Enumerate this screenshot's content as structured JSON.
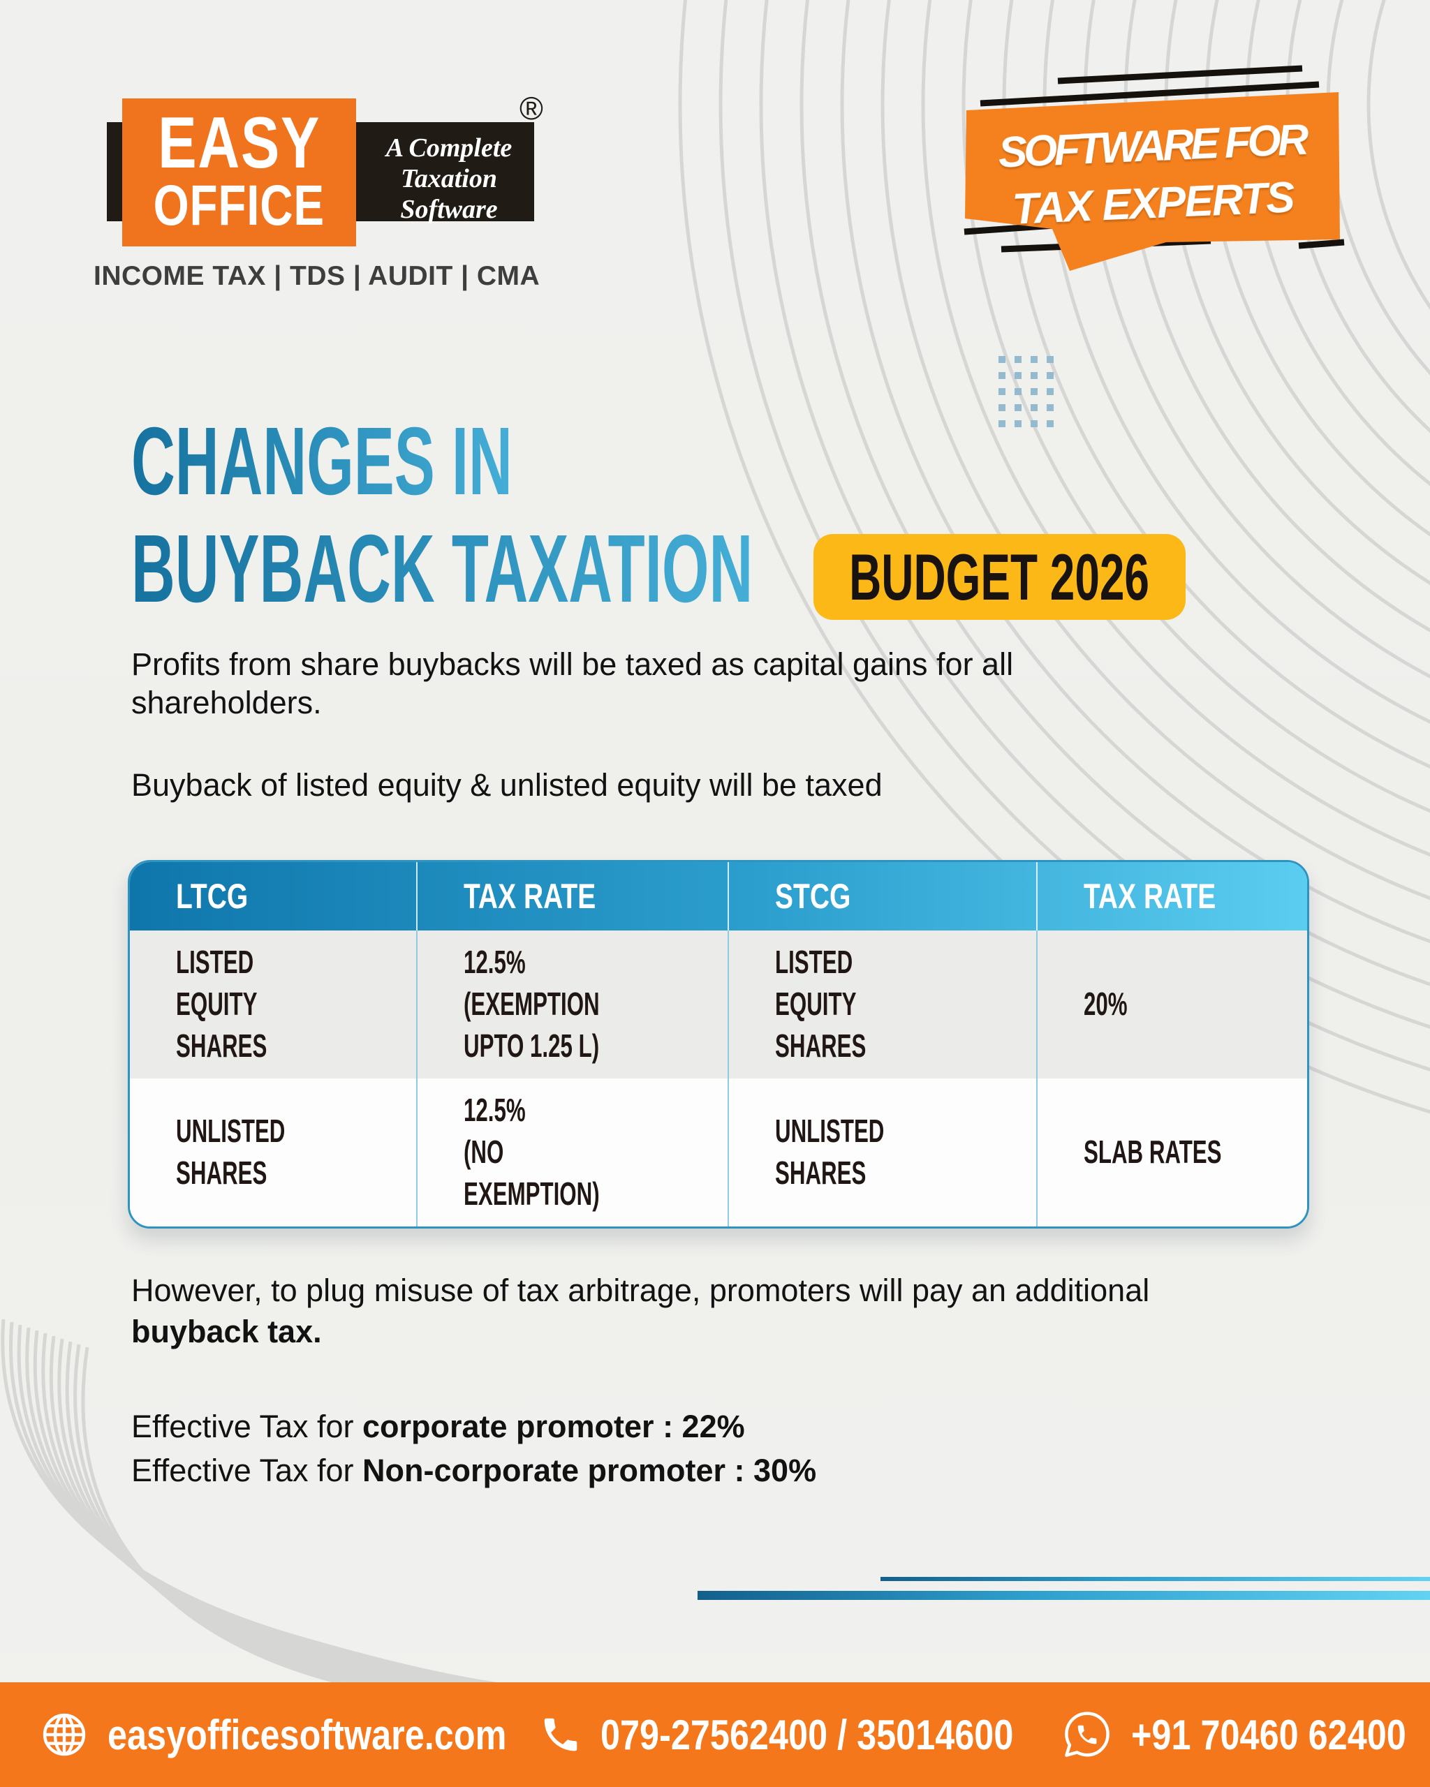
{
  "logo": {
    "word1": "EASY",
    "word2": "OFFICE",
    "registered": "®",
    "tagline_1": "A Complete",
    "tagline_2": "Taxation",
    "tagline_3": "Software",
    "services": "INCOME TAX | TDS | AUDIT | CMA"
  },
  "banner": {
    "line1": "SOFTWARE FOR",
    "line2": "TAX EXPERTS"
  },
  "title": {
    "line1": "CHANGES IN",
    "line2": "BUYBACK TAXATION",
    "badge": "BUDGET 2026"
  },
  "intro": {
    "para1": "Profits from share buybacks will be taxed as capital gains for all shareholders.",
    "para2": "Buyback of listed equity & unlisted equity will be taxed"
  },
  "table": {
    "headers": [
      "LTCG",
      "TAX RATE",
      "STCG",
      "TAX RATE"
    ],
    "rows": [
      {
        "c1": "LISTED\nEQUITY SHARES",
        "c2": "12.5%\n(EXEMPTION\nUPTO 1.25 L)",
        "c3": "LISTED\nEQUITY SHARES",
        "c4": "20%"
      },
      {
        "c1": "UNLISTED\nSHARES",
        "c2": "12.5%\n(NO EXEMPTION)",
        "c3": "UNLISTED\nSHARES",
        "c4": "SLAB RATES"
      }
    ]
  },
  "note": {
    "text": "However, to plug misuse of tax arbitrage, promoters will pay an additional ",
    "bold": "buyback tax."
  },
  "effective": [
    {
      "prefix": "Effective Tax for ",
      "bold": "corporate promoter : 22%"
    },
    {
      "prefix": "Effective Tax for ",
      "bold": "Non-corporate promoter : 30%"
    }
  ],
  "footer": {
    "website": "easyofficesoftware.com",
    "phone": "079-27562400 / 35014600",
    "whatsapp": "+91 70460 62400"
  },
  "colors": {
    "brand_orange": "#f4771b",
    "logo_orange": "#f0731e",
    "badge_yellow": "#fbb817",
    "title_blue_dark": "#16729e",
    "title_blue_light": "#45aed6",
    "table_header_dark": "#0f76ab",
    "table_header_light": "#5bcdf0",
    "contour_gray": "#d6d6d4"
  }
}
